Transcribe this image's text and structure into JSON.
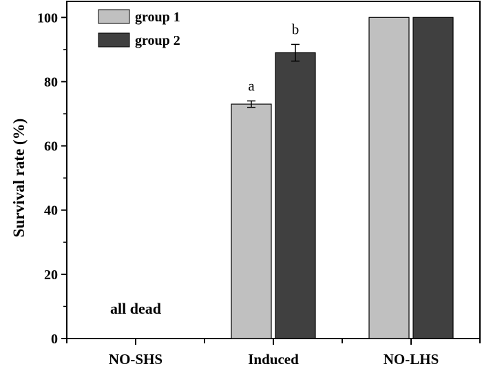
{
  "chart_data": {
    "type": "bar",
    "categories": [
      "NO-SHS",
      "Induced",
      "NO-LHS"
    ],
    "series": [
      {
        "name": "group 1",
        "values": [
          0,
          73,
          100
        ],
        "errors": [
          null,
          1,
          null
        ],
        "color": "#c0c0c0"
      },
      {
        "name": "group 2",
        "values": [
          0,
          89,
          100
        ],
        "errors": [
          null,
          2.6,
          null
        ],
        "color": "#404040"
      }
    ],
    "ylabel": "Survival rate (%)",
    "xlabel": "",
    "ylim": [
      0,
      100
    ],
    "yticks": [
      0,
      20,
      40,
      60,
      80,
      100
    ],
    "legend_position": "top-left",
    "grid": false,
    "annotations": [
      {
        "text": "a",
        "category": "Induced",
        "series": "group 1"
      },
      {
        "text": "b",
        "category": "Induced",
        "series": "group 2"
      },
      {
        "text": "all dead",
        "category": "NO-SHS",
        "series": null
      }
    ]
  }
}
